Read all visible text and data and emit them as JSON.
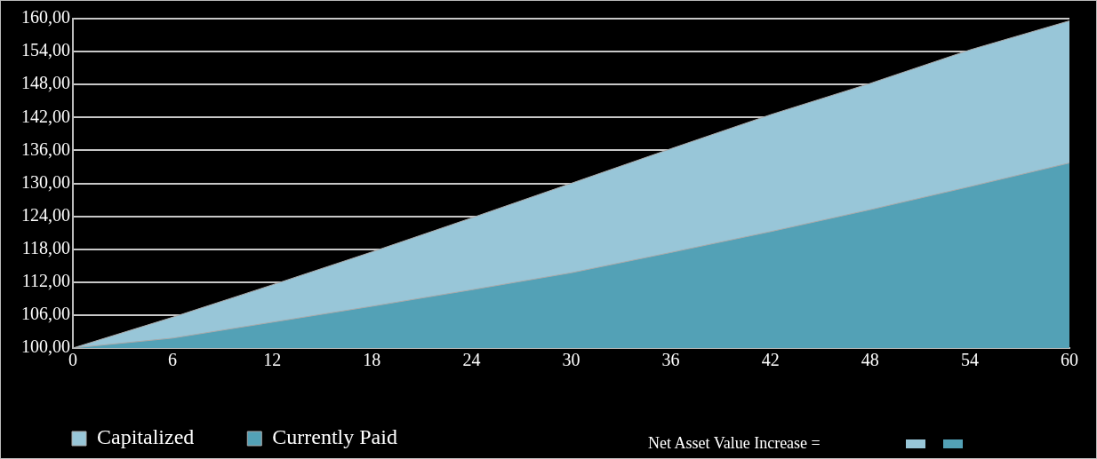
{
  "chart_data": {
    "type": "area",
    "x": [
      0,
      6,
      12,
      18,
      24,
      30,
      36,
      42,
      48,
      54,
      60
    ],
    "series": [
      {
        "name": "Capitalized",
        "color": "#98c6d8",
        "values": [
          100,
          105.6,
          111.5,
          117.5,
          123.7,
          130,
          136.3,
          142.5,
          148.2,
          154.3,
          159.6
        ]
      },
      {
        "name": "Currently Paid",
        "color": "#53a1b6",
        "values": [
          100,
          101.8,
          104.7,
          107.6,
          110.6,
          113.7,
          117.4,
          121.2,
          125.2,
          129.4,
          133.7
        ]
      }
    ],
    "xlim": [
      0,
      60
    ],
    "xticks": [
      0,
      6,
      12,
      18,
      24,
      30,
      36,
      42,
      48,
      54,
      60
    ],
    "ylim": [
      100,
      160
    ],
    "yticks": [
      {
        "value": 100,
        "label": "100,00"
      },
      {
        "value": 106,
        "label": "106,00"
      },
      {
        "value": 112,
        "label": "112,00"
      },
      {
        "value": 118,
        "label": "118,00"
      },
      {
        "value": 124,
        "label": "124,00"
      },
      {
        "value": 130,
        "label": "130,00"
      },
      {
        "value": 136,
        "label": "136,00"
      },
      {
        "value": 142,
        "label": "142,00"
      },
      {
        "value": 148,
        "label": "148,00"
      },
      {
        "value": 154,
        "label": "154,00"
      },
      {
        "value": 160,
        "label": "160,00"
      }
    ],
    "grid": "y",
    "legend": "bottom left",
    "marker": "none",
    "annotations": [
      "Net Asset Value Increase ="
    ]
  }
}
